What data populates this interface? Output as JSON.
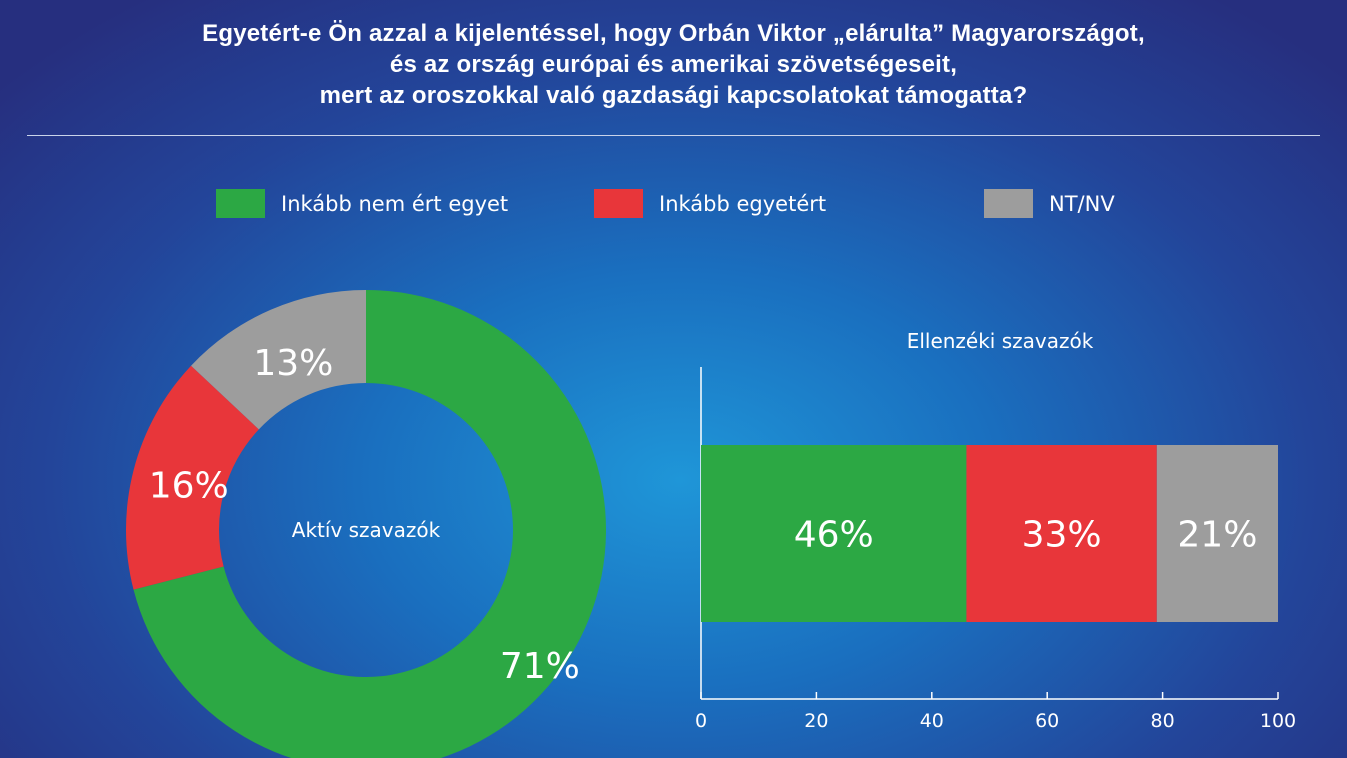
{
  "title_lines": [
    "Egyetért-e Ön azzal a kijelentéssel, hogy Orbán Viktor „elárulta” Magyarországot,",
    "és az ország európai és amerikai szövetségeseit,",
    "mert az oroszokkal való gazdasági kapcsolatokat támogatta?"
  ],
  "legend": [
    {
      "label": "Inkább nem ért egyet",
      "color": "#2ca844"
    },
    {
      "label": "Inkább egyetért",
      "color": "#e8363a"
    },
    {
      "label": "NT/NV",
      "color": "#9d9d9d"
    }
  ],
  "chart_data": [
    {
      "type": "pie",
      "title": "Aktív szavazók",
      "series": [
        {
          "name": "Inkább nem ért egyet",
          "value": 71,
          "label": "71%",
          "color": "#2ca844"
        },
        {
          "name": "Inkább egyetért",
          "value": 16,
          "label": "16%",
          "color": "#e8363a"
        },
        {
          "name": "NT/NV",
          "value": 13,
          "label": "13%",
          "color": "#9d9d9d"
        }
      ]
    },
    {
      "type": "bar",
      "title": "Ellenzéki szavazók",
      "orientation": "horizontal",
      "stacked": true,
      "xlim": [
        0,
        100
      ],
      "xticks": [
        "0",
        "20",
        "40",
        "60",
        "80",
        "100"
      ],
      "series": [
        {
          "name": "Inkább nem ért egyet",
          "value": 46,
          "label": "46%",
          "color": "#2ca844"
        },
        {
          "name": "Inkább egyetért",
          "value": 33,
          "label": "33%",
          "color": "#e8363a"
        },
        {
          "name": "NT/NV",
          "value": 21,
          "label": "21%",
          "color": "#9d9d9d"
        }
      ]
    }
  ]
}
